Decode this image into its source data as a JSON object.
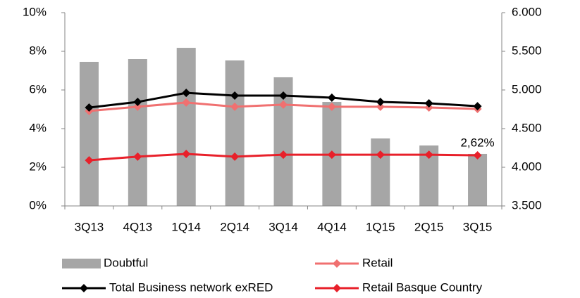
{
  "chart_data": {
    "type": "bar-line",
    "categories": [
      "3Q13",
      "4Q13",
      "1Q14",
      "2Q14",
      "3Q14",
      "4Q14",
      "1Q15",
      "2Q15",
      "3Q15"
    ],
    "series": [
      {
        "name": "Doubtful",
        "type": "bar",
        "axis": "y2",
        "color": "#a6a6a6",
        "values": [
          5364,
          5400,
          5545,
          5382,
          5164,
          4845,
          4373,
          4282,
          4173
        ]
      },
      {
        "name": "Retail",
        "type": "line",
        "color": "#f07070",
        "values": [
          4.91,
          5.13,
          5.35,
          5.13,
          5.24,
          5.13,
          5.13,
          5.09,
          5.02
        ]
      },
      {
        "name": "Total Business network exRED",
        "type": "line",
        "color": "#000000",
        "values": [
          5.09,
          5.38,
          5.85,
          5.71,
          5.71,
          5.6,
          5.38,
          5.31,
          5.16
        ]
      },
      {
        "name": "Retail Basque Country",
        "type": "line",
        "color": "#e8202a",
        "values": [
          2.36,
          2.55,
          2.69,
          2.55,
          2.65,
          2.65,
          2.65,
          2.65,
          2.62
        ],
        "value_labels": [
          null,
          null,
          null,
          null,
          null,
          null,
          null,
          null,
          "2,62%"
        ]
      }
    ],
    "ylim": [
      0,
      10
    ],
    "yticks": [
      {
        "value": 0,
        "label": "0%"
      },
      {
        "value": 2,
        "label": "2%"
      },
      {
        "value": 4,
        "label": "4%"
      },
      {
        "value": 6,
        "label": "6%"
      },
      {
        "value": 8,
        "label": "8%"
      },
      {
        "value": 10,
        "label": "10%"
      }
    ],
    "y2lim": [
      3500,
      6000
    ],
    "y2ticks": [
      {
        "value": 3500,
        "label": "3.500"
      },
      {
        "value": 4000,
        "label": "4.000"
      },
      {
        "value": 4500,
        "label": "4.500"
      },
      {
        "value": 5000,
        "label": "5.000"
      },
      {
        "value": 5500,
        "label": "5.500"
      },
      {
        "value": 6000,
        "label": "6.000"
      }
    ],
    "grid": false
  }
}
